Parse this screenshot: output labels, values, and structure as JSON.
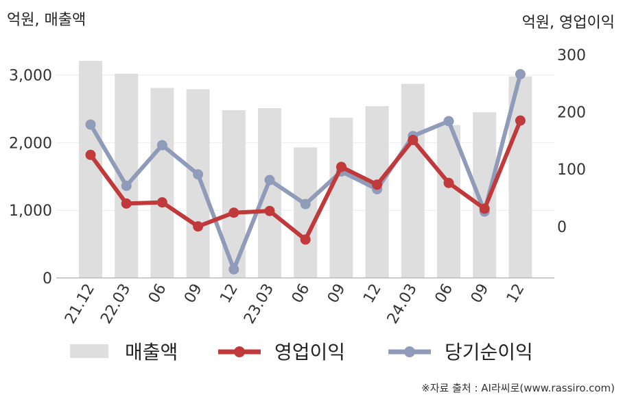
{
  "chart_data": {
    "type": "bar+line",
    "y_left_label": "억원, 매출액",
    "y_right_label": "억원, 영업이익",
    "categories": [
      "21.12",
      "22.03",
      "06",
      "09",
      "12",
      "23.03",
      "06",
      "09",
      "12",
      "24.03",
      "06",
      "09",
      "12"
    ],
    "ylim_left": [
      0,
      3300
    ],
    "yticks_left": [
      {
        "value": 0,
        "label": "0"
      },
      {
        "value": 1000,
        "label": "1,000"
      },
      {
        "value": 2000,
        "label": "2,000"
      },
      {
        "value": 3000,
        "label": "3,000"
      }
    ],
    "ylim_right": [
      -90,
      300
    ],
    "yticks_right": [
      {
        "value": 0,
        "label": "0"
      },
      {
        "value": 100,
        "label": "100"
      },
      {
        "value": 200,
        "label": "200"
      },
      {
        "value": 300,
        "label": "300"
      }
    ],
    "grid": true,
    "legend_position": "bottom",
    "series": [
      {
        "name": "매출액",
        "kind": "bar",
        "axis": "left",
        "color": "#dedede",
        "values": [
          3210,
          3020,
          2810,
          2790,
          2480,
          2510,
          1930,
          2370,
          2540,
          2870,
          2260,
          2450,
          2980
        ]
      },
      {
        "name": "영업이익",
        "kind": "line",
        "axis": "right",
        "color": "#c0393b",
        "values": [
          125,
          40,
          42,
          0,
          24,
          27,
          -23,
          104,
          73,
          151,
          76,
          31,
          185
        ]
      },
      {
        "name": "당기순이익",
        "kind": "line",
        "axis": "right",
        "color": "#8f9bb8",
        "values": [
          178,
          71,
          142,
          91,
          -75,
          81,
          39,
          96,
          65,
          158,
          184,
          26,
          266
        ]
      }
    ]
  },
  "source": "※자료 출처 : AI라씨로(www.rassiro.com)"
}
